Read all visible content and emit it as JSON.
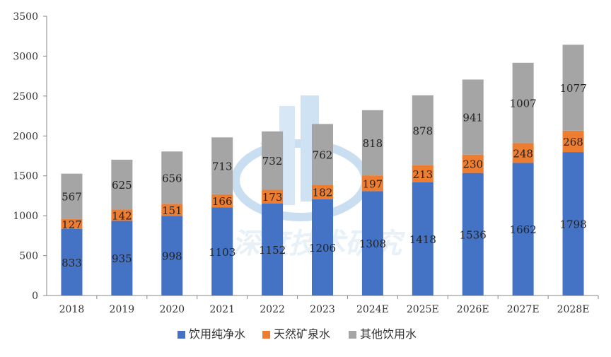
{
  "chart_data": {
    "type": "bar",
    "stacked": true,
    "title": "",
    "xlabel": "",
    "ylabel": "",
    "ylim": [
      0,
      3500
    ],
    "yticks": [
      0,
      500,
      1000,
      1500,
      2000,
      2500,
      3000,
      3500
    ],
    "categories": [
      "2018",
      "2019",
      "2020",
      "2021",
      "2022",
      "2023",
      "2024E",
      "2025E",
      "2026E",
      "2027E",
      "2028E"
    ],
    "series": [
      {
        "name": "饮用纯净水",
        "color": "#4472c4",
        "label_color": "#222222",
        "values": [
          833,
          935,
          998,
          1103,
          1152,
          1206,
          1308,
          1418,
          1536,
          1662,
          1798
        ]
      },
      {
        "name": "天然矿泉水",
        "color": "#ed7d31",
        "label_color": "#222222",
        "values": [
          127,
          142,
          151,
          166,
          173,
          182,
          197,
          213,
          230,
          248,
          268
        ]
      },
      {
        "name": "其他饮用水",
        "color": "#a5a5a5",
        "label_color": "#222222",
        "values": [
          567,
          625,
          656,
          713,
          732,
          762,
          818,
          878,
          941,
          1007,
          1077
        ]
      }
    ],
    "legend_position": "bottom-center",
    "grid": false
  },
  "watermark": {
    "text": "深度技术研究",
    "color": "#cfe2f3"
  }
}
